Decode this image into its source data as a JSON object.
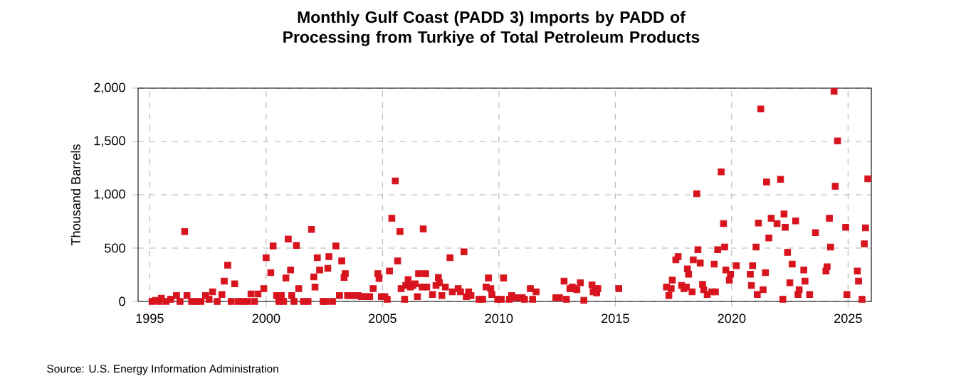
{
  "chart_data": {
    "type": "scatter",
    "title": "Monthly Gulf Coast (PADD 3) Imports by PADD of Processing from Turkiye of Total Petroleum Products",
    "ylabel": "Thousand Barrels",
    "annotations": [
      "Source: U.S. Energy Information Administration"
    ],
    "xlim": [
      1994.5,
      2026
    ],
    "xticks": [
      1995,
      2000,
      2005,
      2010,
      2015,
      2020,
      2025
    ],
    "ylim": [
      0,
      2000
    ],
    "yticks": [
      0,
      {
        "value": 500,
        "label": "500"
      },
      {
        "value": 1000,
        "label": "1,000"
      },
      {
        "value": 1500,
        "label": "1,500"
      },
      {
        "value": 2000,
        "label": "2,000"
      }
    ],
    "grid": true,
    "marker": "square",
    "series": [
      {
        "color": "#d7141e",
        "x": [
          1995.1,
          1995.25,
          1995.4,
          1995.5,
          1995.7,
          1995.9,
          1996.15,
          1996.3,
          1996.5,
          1996.6,
          1996.8,
          1997.0,
          1997.2,
          1997.4,
          1997.55,
          1997.7,
          1997.9,
          1998.1,
          1998.2,
          1998.35,
          1998.5,
          1998.65,
          1998.8,
          1999.0,
          1999.2,
          1999.35,
          1999.5,
          1999.65,
          1999.9,
          2000.0,
          2000.2,
          2000.3,
          2000.45,
          2000.55,
          2000.65,
          2000.75,
          2000.85,
          2000.95,
          2001.05,
          2001.1,
          2001.2,
          2001.3,
          2001.4,
          2001.6,
          2001.8,
          2001.95,
          2002.05,
          2002.1,
          2002.2,
          2002.3,
          2002.45,
          2002.55,
          2002.65,
          2002.7,
          2002.85,
          2003.0,
          2003.15,
          2003.25,
          2003.35,
          2003.4,
          2003.5,
          2003.65,
          2003.8,
          2003.95,
          2004.1,
          2004.3,
          2004.45,
          2004.6,
          2004.8,
          2004.85,
          2004.95,
          2005.1,
          2005.2,
          2005.3,
          2005.4,
          2005.55,
          2005.65,
          2005.75,
          2005.8,
          2005.95,
          2006.0,
          2006.1,
          2006.2,
          2006.3,
          2006.4,
          2006.5,
          2006.55,
          2006.7,
          2006.75,
          2006.85,
          2006.9,
          2007.15,
          2007.3,
          2007.4,
          2007.45,
          2007.55,
          2007.7,
          2007.9,
          2008.0,
          2008.25,
          2008.35,
          2008.5,
          2008.6,
          2008.7,
          2008.8,
          2009.15,
          2009.3,
          2009.45,
          2009.55,
          2009.65,
          2009.7,
          2009.95,
          2010.1,
          2010.2,
          2010.45,
          2010.55,
          2010.7,
          2010.85,
          2011.0,
          2011.1,
          2011.35,
          2011.45,
          2011.6,
          2012.45,
          2012.6,
          2012.8,
          2012.9,
          2013.05,
          2013.15,
          2013.25,
          2013.35,
          2013.5,
          2013.65,
          2014.0,
          2014.05,
          2014.15,
          2014.2,
          2014.25,
          2015.15,
          2017.2,
          2017.3,
          2017.4,
          2017.45,
          2017.6,
          2017.7,
          2017.85,
          2017.95,
          2018.05,
          2018.1,
          2018.15,
          2018.3,
          2018.35,
          2018.5,
          2018.55,
          2018.65,
          2018.75,
          2018.8,
          2018.95,
          2019.15,
          2019.25,
          2019.3,
          2019.4,
          2019.55,
          2019.65,
          2019.7,
          2019.75,
          2019.9,
          2019.95,
          2020.2,
          2020.8,
          2020.85,
          2020.9,
          2021.05,
          2021.1,
          2021.15,
          2021.25,
          2021.35,
          2021.45,
          2021.5,
          2021.6,
          2021.7,
          2021.95,
          2022.1,
          2022.2,
          2022.25,
          2022.3,
          2022.4,
          2022.5,
          2022.6,
          2022.75,
          2022.85,
          2022.9,
          2023.1,
          2023.15,
          2023.35,
          2023.6,
          2024.05,
          2024.1,
          2024.2,
          2024.25,
          2024.4,
          2024.45,
          2024.55,
          2024.9,
          2024.95,
          2025.4,
          2025.45,
          2025.6,
          2025.7,
          2025.75,
          2025.85
        ],
        "values": [
          0,
          10,
          0,
          30,
          0,
          20,
          55,
          0,
          655,
          55,
          0,
          0,
          0,
          55,
          20,
          90,
          0,
          65,
          190,
          340,
          0,
          165,
          0,
          0,
          0,
          70,
          0,
          70,
          120,
          410,
          270,
          520,
          55,
          0,
          55,
          0,
          220,
          585,
          295,
          55,
          0,
          525,
          120,
          0,
          0,
          675,
          230,
          135,
          410,
          295,
          0,
          0,
          310,
          420,
          0,
          520,
          55,
          380,
          225,
          260,
          55,
          55,
          55,
          55,
          45,
          45,
          45,
          120,
          260,
          215,
          45,
          45,
          20,
          285,
          780,
          1130,
          380,
          655,
          120,
          20,
          150,
          205,
          135,
          150,
          165,
          45,
          260,
          135,
          680,
          260,
          135,
          65,
          150,
          225,
          175,
          55,
          135,
          410,
          90,
          120,
          90,
          465,
          45,
          90,
          55,
          20,
          20,
          135,
          220,
          120,
          65,
          20,
          20,
          220,
          20,
          55,
          35,
          35,
          35,
          20,
          120,
          20,
          90,
          35,
          35,
          190,
          20,
          120,
          135,
          120,
          110,
          175,
          10,
          155,
          90,
          120,
          80,
          120,
          120,
          135,
          55,
          120,
          200,
          390,
          420,
          150,
          120,
          135,
          305,
          255,
          90,
          390,
          1010,
          485,
          360,
          160,
          110,
          65,
          90,
          350,
          90,
          485,
          1215,
          730,
          510,
          295,
          200,
          255,
          335,
          255,
          150,
          335,
          510,
          65,
          735,
          1805,
          110,
          270,
          1120,
          595,
          780,
          730,
          1145,
          20,
          820,
          695,
          460,
          175,
          350,
          755,
          65,
          110,
          295,
          190,
          65,
          645,
          285,
          325,
          780,
          510,
          1970,
          1080,
          1505,
          695,
          65,
          285,
          190,
          20,
          540,
          690,
          1150
        ]
      }
    ]
  }
}
